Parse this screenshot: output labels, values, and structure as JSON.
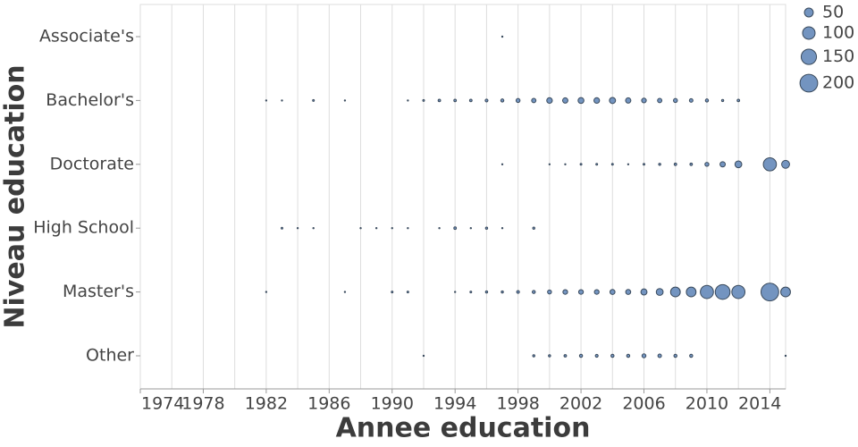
{
  "chart_data": {
    "type": "scatter",
    "x_label": "Annee education",
    "y_label": "Niveau education",
    "xlim": [
      1974,
      2015
    ],
    "xticks": [
      1974,
      1978,
      1982,
      1986,
      1990,
      1994,
      1998,
      2002,
      2006,
      2010,
      2014
    ],
    "minor_xticks": [
      1976,
      1980,
      1984,
      1988,
      1992,
      1996,
      2000,
      2004,
      2008,
      2012
    ],
    "grid": true,
    "color": "#7394c0",
    "stroke": "#3a4a5c",
    "size_legend": [
      50,
      100,
      150,
      200
    ],
    "legend_position": "right",
    "series": [
      {
        "name": "Associate's",
        "x": [
          1997
        ],
        "size": [
          1
        ]
      },
      {
        "name": "Bachelor's",
        "x": [
          1982,
          1983,
          1985,
          1987,
          1991,
          1992,
          1993,
          1994,
          1995,
          1996,
          1997,
          1998,
          1999,
          2000,
          2001,
          2002,
          2003,
          2004,
          2005,
          2006,
          2007,
          2008,
          2009,
          2010,
          2011,
          2012
        ],
        "size": [
          1,
          1,
          2,
          1,
          1,
          2,
          4,
          4,
          4,
          5,
          6,
          10,
          12,
          20,
          18,
          22,
          20,
          24,
          18,
          14,
          12,
          10,
          8,
          6,
          3,
          4
        ]
      },
      {
        "name": "Doctorate",
        "x": [
          1997,
          2000,
          2001,
          2002,
          2003,
          2004,
          2005,
          2006,
          2007,
          2008,
          2009,
          2010,
          2011,
          2012,
          2014,
          2015
        ],
        "size": [
          1,
          1,
          1,
          2,
          2,
          2,
          1,
          2,
          3,
          4,
          4,
          10,
          18,
          30,
          110,
          40
        ]
      },
      {
        "name": "High School",
        "x": [
          1983,
          1984,
          1985,
          1988,
          1989,
          1990,
          1991,
          1993,
          1994,
          1995,
          1996,
          1997,
          1999
        ],
        "size": [
          2,
          1,
          1,
          1,
          1,
          1,
          1,
          1,
          4,
          1,
          3,
          1,
          3
        ]
      },
      {
        "name": "Master's",
        "x": [
          1982,
          1987,
          1990,
          1991,
          1994,
          1995,
          1996,
          1997,
          1998,
          1999,
          2000,
          2001,
          2002,
          2003,
          2004,
          2005,
          2006,
          2007,
          2008,
          2009,
          2010,
          2011,
          2012,
          2014,
          2015
        ],
        "size": [
          1,
          1,
          2,
          2,
          1,
          2,
          3,
          3,
          5,
          6,
          10,
          14,
          14,
          14,
          16,
          16,
          24,
          30,
          60,
          60,
          110,
          140,
          110,
          200,
          60
        ]
      },
      {
        "name": "Other",
        "x": [
          1992,
          1999,
          2000,
          2001,
          2002,
          2003,
          2004,
          2005,
          2006,
          2007,
          2008,
          2009,
          2015
        ],
        "size": [
          1,
          3,
          3,
          4,
          6,
          5,
          6,
          6,
          10,
          8,
          6,
          6,
          1
        ]
      }
    ]
  }
}
